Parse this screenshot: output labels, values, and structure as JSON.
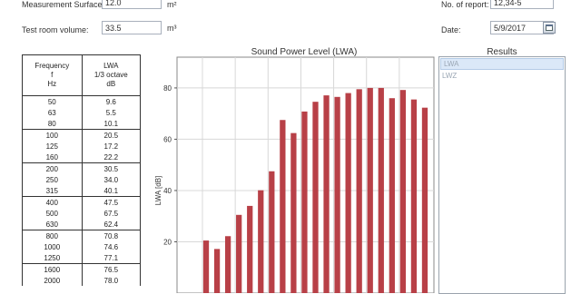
{
  "form": {
    "measurement_surface_label": "Measurement Surface:",
    "measurement_surface_value": "12.0",
    "measurement_surface_unit": "m²",
    "test_room_volume_label": "Test room volume:",
    "test_room_volume_value": "33.5",
    "test_room_volume_unit": "m³",
    "report_no_label": "No. of report:",
    "report_no_value": "12,34-5",
    "date_label": "Date:",
    "date_value": "5/9/2017"
  },
  "table": {
    "header_col1": [
      "Frequency",
      "f",
      "Hz"
    ],
    "header_col2": [
      "LWA",
      "1/3 octave",
      "dB"
    ],
    "rows": [
      [
        "50",
        "9.6"
      ],
      [
        "63",
        "5.5"
      ],
      [
        "80",
        "10.1"
      ],
      [
        "100",
        "20.5"
      ],
      [
        "125",
        "17.2"
      ],
      [
        "160",
        "22.2"
      ],
      [
        "200",
        "30.5"
      ],
      [
        "250",
        "34.0"
      ],
      [
        "315",
        "40.1"
      ],
      [
        "400",
        "47.5"
      ],
      [
        "500",
        "67.5"
      ],
      [
        "630",
        "62.4"
      ],
      [
        "800",
        "70.8"
      ],
      [
        "1000",
        "74.6"
      ],
      [
        "1250",
        "77.1"
      ],
      [
        "1600",
        "76.5"
      ],
      [
        "2000",
        "78.0"
      ]
    ]
  },
  "results": {
    "title": "Results",
    "items": [
      "LWA",
      "LWZ"
    ]
  },
  "chart_data": {
    "type": "bar",
    "title": "Sound Power Level (LWA)",
    "ylabel": "LWA [dB]",
    "xlabel": "",
    "ylim": [
      0,
      92
    ],
    "yticks": [
      20,
      40,
      60,
      80
    ],
    "grid": true,
    "values": [
      20.5,
      17.2,
      22.2,
      30.5,
      34.0,
      40.1,
      47.5,
      67.5,
      62.4,
      70.8,
      74.6,
      77.1,
      76.5,
      78.0,
      79.5,
      80.0,
      80.0,
      76.0,
      79.2,
      75.5,
      72.3
    ],
    "bar_color": "#b84047",
    "grid_color": "#d8d8d8"
  }
}
